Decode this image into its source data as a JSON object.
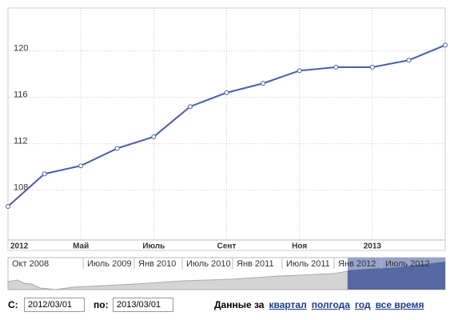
{
  "chart_data": {
    "type": "line",
    "categories": [
      "2012",
      null,
      "Май",
      null,
      "Июль",
      null,
      "Сент",
      null,
      "Ноя",
      null,
      "2013",
      null,
      null
    ],
    "series": [
      {
        "color": "#4a5ea8",
        "values": [
          106.6,
          109.4,
          110.1,
          111.6,
          112.6,
          115.2,
          116.4,
          117.2,
          118.3,
          118.6,
          118.6,
          119.2,
          120.5
        ]
      }
    ],
    "ylim": [
      103.7,
      123.7
    ],
    "yticks": [
      108,
      112,
      116,
      120
    ],
    "grid": true
  },
  "navigator": {
    "labels": [
      "Окт 2008",
      "Июль 2009",
      "Янв 2010",
      "Июль 2010",
      "Янв 2011",
      "Июль 2011",
      "Янв 2012",
      "Июль 2012"
    ]
  },
  "controls": {
    "from_label": "С:",
    "from_value": "2012/03/01",
    "to_label": "по:",
    "to_value": "2013/03/01",
    "range_label": "Данные за",
    "ranges": [
      "квартал",
      "полгода",
      "год",
      "все время"
    ]
  }
}
